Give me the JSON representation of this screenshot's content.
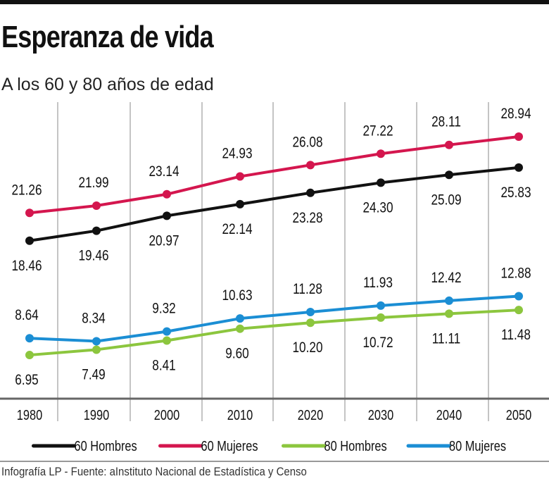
{
  "title": "Esperanza de vida",
  "subtitle": "A los 60 y 80 años de edad",
  "source": "Infografía LP  - Fuente: aInstituto Nacional de Estadística y Censo",
  "chart_data": {
    "type": "line",
    "title": "Esperanza de vida",
    "subtitle": "A los 60 y 80 años de edad",
    "categories": [
      "1980",
      "1990",
      "2000",
      "2010",
      "2020",
      "2030",
      "2040",
      "2050"
    ],
    "grid": "vertical",
    "legend": "bottom",
    "series": [
      {
        "name": "60 Hombres",
        "color": "#111111",
        "label_position": "below",
        "values": [
          18.46,
          19.46,
          20.97,
          22.14,
          23.28,
          24.3,
          25.09,
          25.83
        ]
      },
      {
        "name": "60 Mujeres",
        "color": "#d4164e",
        "label_position": "above",
        "values": [
          21.26,
          21.99,
          23.14,
          24.93,
          26.08,
          27.22,
          28.11,
          28.94
        ]
      },
      {
        "name": "80 Hombres",
        "color": "#8cc63e",
        "label_position": "below",
        "values": [
          6.95,
          7.49,
          8.41,
          9.6,
          10.2,
          10.72,
          11.11,
          11.48
        ]
      },
      {
        "name": "80 Mujeres",
        "color": "#1b8ed4",
        "label_position": "above",
        "values": [
          8.64,
          8.34,
          9.32,
          10.63,
          11.28,
          11.93,
          12.42,
          12.88
        ]
      }
    ]
  }
}
